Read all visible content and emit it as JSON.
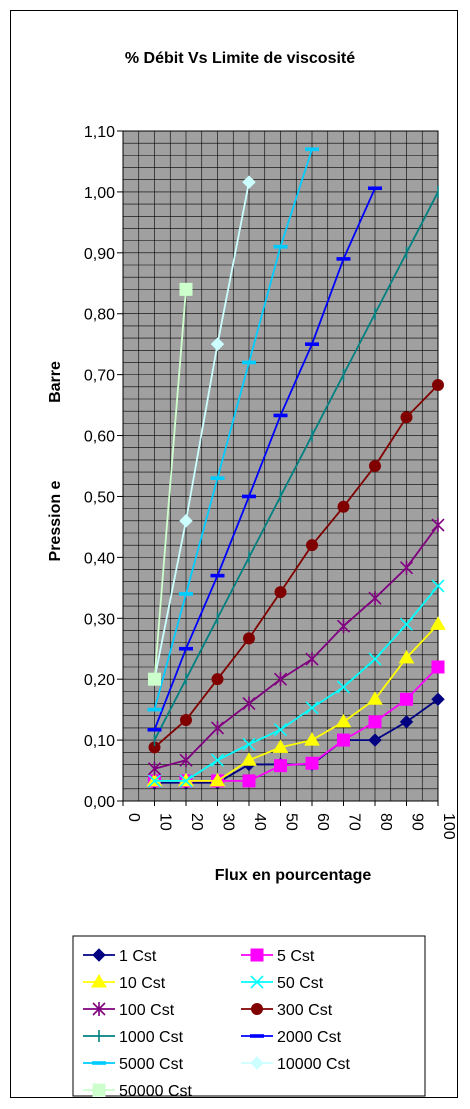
{
  "chart_data": {
    "type": "line",
    "title": "% Débit Vs Limite de viscosité",
    "xlabel": "Flux en pourcentage",
    "ylabel_parts": [
      "Pression e",
      "Barre"
    ],
    "xlim": [
      0,
      100
    ],
    "ylim": [
      0,
      1.1
    ],
    "x_ticks": [
      "0",
      "10",
      "20",
      "30",
      "40",
      "50",
      "60",
      "70",
      "80",
      "90",
      "100"
    ],
    "y_ticks": [
      "0,00",
      "0,10",
      "0,20",
      "0,30",
      "0,40",
      "0,50",
      "0,60",
      "0,70",
      "0,80",
      "0,90",
      "1,00",
      "1,10"
    ],
    "grid": true,
    "legend_position": "bottom",
    "series": [
      {
        "name": "1 Cst",
        "color": "#000080",
        "marker": "diamond",
        "x": [
          10,
          20,
          30,
          40,
          50,
          60,
          70,
          80,
          90,
          100
        ],
        "y": [
          0.03,
          0.03,
          0.03,
          0.06,
          0.06,
          0.06,
          0.1,
          0.1,
          0.13,
          0.167
        ]
      },
      {
        "name": "5 Cst",
        "color": "#ff00ff",
        "marker": "square",
        "x": [
          10,
          20,
          30,
          40,
          50,
          60,
          70,
          80,
          90,
          100
        ],
        "y": [
          0.033,
          0.033,
          0.033,
          0.033,
          0.058,
          0.062,
          0.1,
          0.13,
          0.167,
          0.22
        ]
      },
      {
        "name": "10 Cst",
        "color": "#ffff00",
        "marker": "triangle",
        "x": [
          10,
          20,
          30,
          40,
          50,
          60,
          70,
          80,
          90,
          100
        ],
        "y": [
          0.033,
          0.033,
          0.033,
          0.067,
          0.088,
          0.1,
          0.13,
          0.167,
          0.235,
          0.29
        ]
      },
      {
        "name": "50 Cst",
        "color": "#00ffff",
        "marker": "x",
        "x": [
          10,
          20,
          30,
          40,
          50,
          60,
          70,
          80,
          90,
          100
        ],
        "y": [
          0.033,
          0.033,
          0.067,
          0.093,
          0.117,
          0.153,
          0.187,
          0.233,
          0.29,
          0.353
        ]
      },
      {
        "name": "100 Cst",
        "color": "#800080",
        "marker": "star",
        "x": [
          10,
          20,
          30,
          40,
          50,
          60,
          70,
          80,
          90,
          100
        ],
        "y": [
          0.053,
          0.067,
          0.12,
          0.16,
          0.2,
          0.233,
          0.287,
          0.333,
          0.383,
          0.453
        ]
      },
      {
        "name": "300 Cst",
        "color": "#800000",
        "marker": "circle",
        "x": [
          10,
          20,
          30,
          40,
          50,
          60,
          70,
          80,
          90,
          100
        ],
        "y": [
          0.088,
          0.133,
          0.2,
          0.267,
          0.343,
          0.42,
          0.483,
          0.55,
          0.63,
          0.683
        ]
      },
      {
        "name": "1000 Cst",
        "color": "#008080",
        "marker": "plus",
        "x": [
          10,
          20,
          30,
          40,
          50,
          60,
          70,
          80,
          90,
          100
        ],
        "y": [
          0.1,
          0.2,
          0.3,
          0.4,
          0.5,
          0.6,
          0.7,
          0.8,
          0.9,
          1.0
        ]
      },
      {
        "name": "2000 Cst",
        "color": "#0000ff",
        "marker": "dash",
        "x": [
          10,
          20,
          30,
          40,
          50,
          60,
          70,
          80
        ],
        "y": [
          0.117,
          0.25,
          0.37,
          0.5,
          0.633,
          0.75,
          0.89,
          1.006
        ]
      },
      {
        "name": "5000 Cst",
        "color": "#00ccff",
        "marker": "dash",
        "x": [
          10,
          20,
          30,
          40,
          50,
          60
        ],
        "y": [
          0.15,
          0.34,
          0.53,
          0.72,
          0.91,
          1.07
        ]
      },
      {
        "name": "10000 Cst",
        "color": "#ccffff",
        "marker": "diamond",
        "x": [
          10,
          20,
          30,
          40
        ],
        "y": [
          0.2,
          0.46,
          0.75,
          1.016
        ]
      },
      {
        "name": "50000 Cst",
        "color": "#ccffcc",
        "marker": "square",
        "x": [
          10,
          20
        ],
        "y": [
          0.2,
          0.84
        ]
      }
    ]
  }
}
